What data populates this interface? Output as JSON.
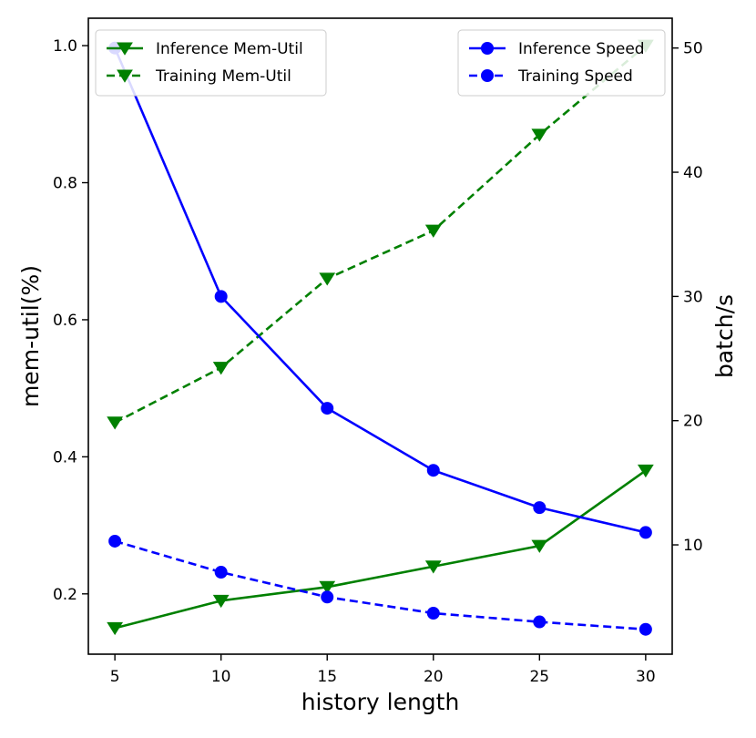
{
  "chart_data": {
    "type": "line",
    "x": [
      5,
      10,
      15,
      20,
      25,
      30
    ],
    "xlabel": "history length",
    "ylabel_left": "mem-util(%)",
    "ylabel_right": "batch/s",
    "xlim": [
      3.75,
      31.25
    ],
    "ylim_left": [
      0.112,
      1.04
    ],
    "ylim_right": [
      1.2,
      52.4
    ],
    "x_ticks": [
      5,
      10,
      15,
      20,
      25,
      30
    ],
    "y_left_ticks": [
      0.2,
      0.4,
      0.6,
      0.8,
      1.0
    ],
    "y_left_tick_labels": [
      "0.2",
      "0.4",
      "0.6",
      "0.8",
      "1.0"
    ],
    "y_right_ticks": [
      10,
      20,
      30,
      40,
      50
    ],
    "grid": false,
    "series": [
      {
        "name": "Inference Mem-Util",
        "axis": "left",
        "values": [
          0.15,
          0.19,
          0.21,
          0.24,
          0.27,
          0.38
        ],
        "color": "#008000",
        "dash": "solid",
        "marker": "triangle-down"
      },
      {
        "name": "Training Mem-Util",
        "axis": "left",
        "values": [
          0.45,
          0.53,
          0.66,
          0.73,
          0.87,
          1.0
        ],
        "color": "#008000",
        "dash": "dashed",
        "marker": "triangle-down"
      },
      {
        "name": "Inference Speed",
        "axis": "right",
        "values": [
          50.0,
          30.0,
          21.0,
          16.0,
          13.0,
          11.0
        ],
        "color": "#0000ff",
        "dash": "solid",
        "marker": "circle"
      },
      {
        "name": "Training Speed",
        "axis": "right",
        "values": [
          10.3,
          7.8,
          5.8,
          4.5,
          3.8,
          3.2
        ],
        "color": "#0000ff",
        "dash": "dashed",
        "marker": "circle"
      }
    ],
    "legends": [
      {
        "position": "top-left",
        "entries": [
          "Inference Mem-Util",
          "Training Mem-Util"
        ]
      },
      {
        "position": "top-right",
        "entries": [
          "Inference Speed",
          "Training Speed"
        ]
      }
    ]
  }
}
